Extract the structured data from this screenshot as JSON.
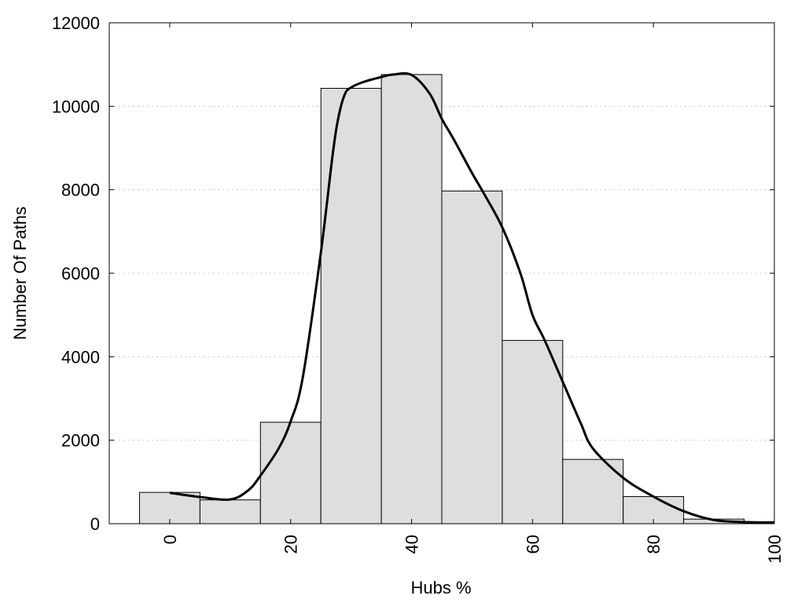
{
  "chart_data": {
    "type": "bar",
    "xlabel": "Hubs %",
    "ylabel": "Number Of Paths",
    "xlim": [
      -10,
      100
    ],
    "ylim": [
      0,
      12000
    ],
    "x_ticks": [
      "0",
      "20",
      "40",
      "60",
      "80",
      "100"
    ],
    "y_ticks": [
      "0",
      "2000",
      "4000",
      "6000",
      "8000",
      "10000",
      "12000"
    ],
    "grid": "horizontal dotted",
    "legend": "none",
    "bar_color": "#dedede",
    "bins": [
      {
        "from": -5,
        "to": 5,
        "value": 750
      },
      {
        "from": 5,
        "to": 15,
        "value": 570
      },
      {
        "from": 15,
        "to": 25,
        "value": 2430
      },
      {
        "from": 25,
        "to": 35,
        "value": 10430
      },
      {
        "from": 35,
        "to": 45,
        "value": 10760
      },
      {
        "from": 45,
        "to": 55,
        "value": 7970
      },
      {
        "from": 55,
        "to": 65,
        "value": 4390
      },
      {
        "from": 65,
        "to": 75,
        "value": 1540
      },
      {
        "from": 75,
        "to": 85,
        "value": 650
      },
      {
        "from": 85,
        "to": 95,
        "value": 110
      },
      {
        "from": 95,
        "to": 105,
        "value": 30
      }
    ],
    "curve": {
      "x": [
        0,
        5,
        10,
        13,
        15,
        18,
        20,
        22,
        25,
        27,
        28,
        29,
        30,
        32,
        35,
        37,
        40,
        43,
        45,
        47,
        50,
        52,
        55,
        58,
        60,
        62,
        65,
        68,
        70,
        75,
        80,
        85,
        90,
        95,
        100
      ],
      "y": [
        740,
        640,
        580,
        800,
        1150,
        1800,
        2450,
        3500,
        6500,
        8900,
        9800,
        10300,
        10450,
        10580,
        10700,
        10760,
        10750,
        10300,
        9700,
        9200,
        8400,
        7900,
        7100,
        6000,
        5000,
        4400,
        3400,
        2400,
        1800,
        1100,
        650,
        300,
        90,
        40,
        30
      ]
    }
  }
}
